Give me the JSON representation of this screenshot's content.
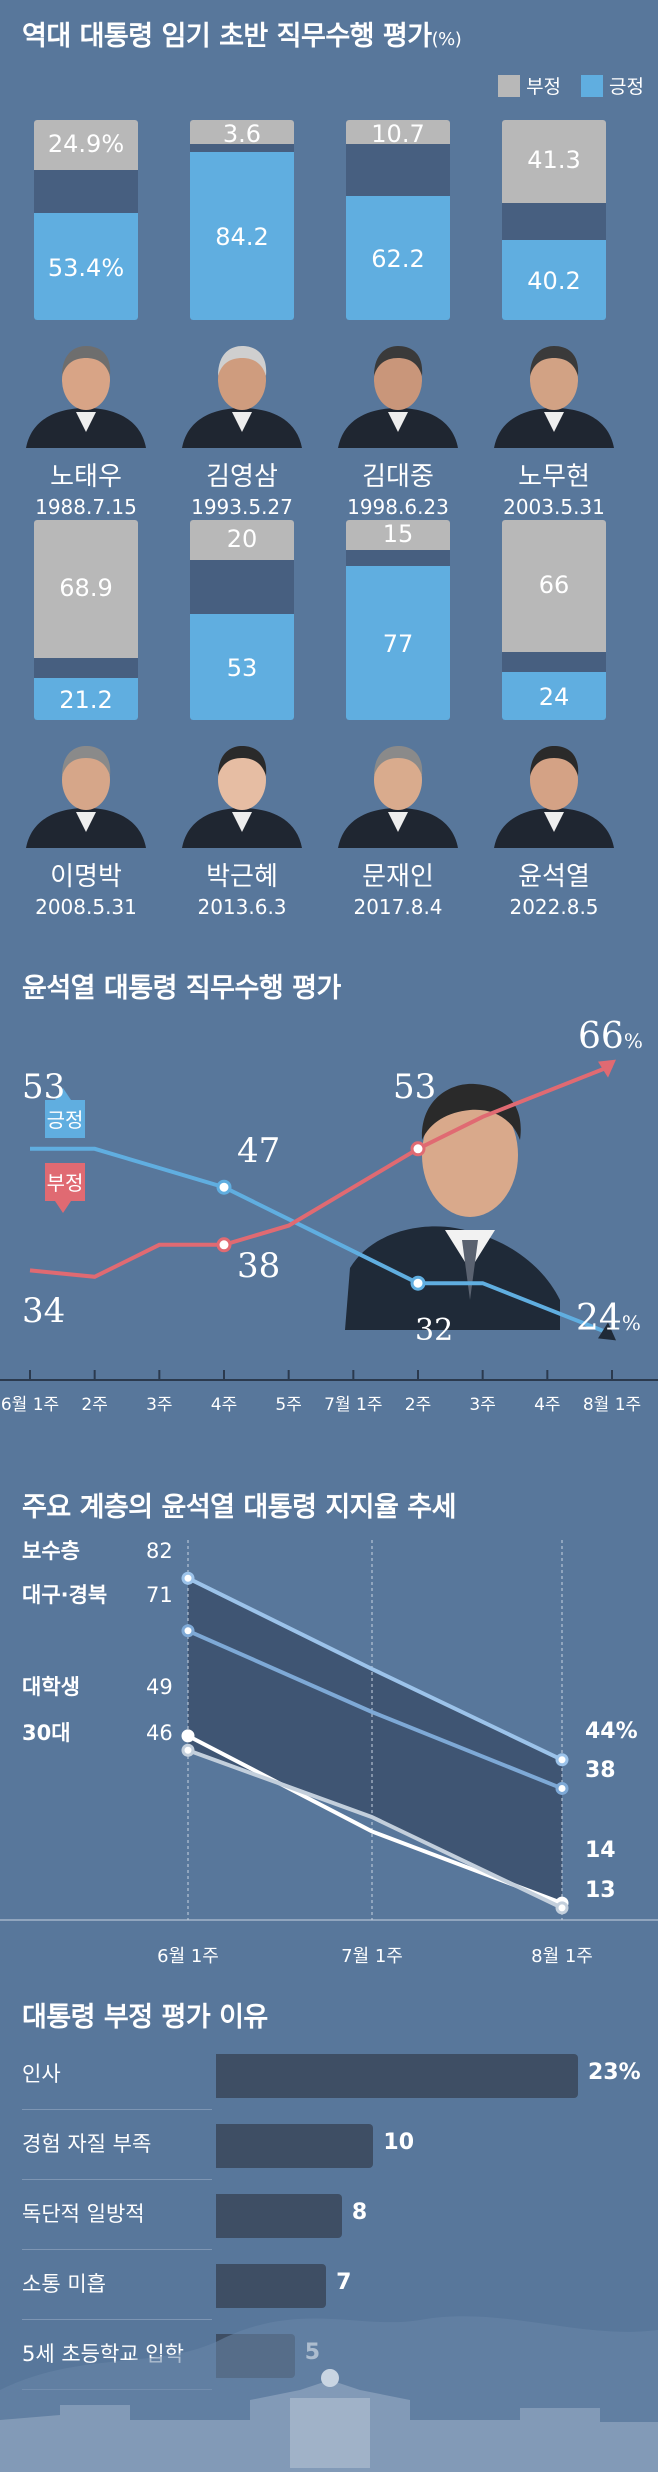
{
  "section1": {
    "title": "역대 대통령 임기 초반 직무수행 평가",
    "unit": "(%)",
    "legend": {
      "negative": "부정",
      "positive": "긍정"
    },
    "colors": {
      "negative": "#b8b8b8",
      "positive": "#60aee0",
      "background": "#58779b"
    },
    "presidents": [
      {
        "name": "노태우",
        "date": "1988.7.15",
        "negative": "24.9%",
        "positive": "53.4%"
      },
      {
        "name": "김영삼",
        "date": "1993.5.27",
        "negative": "3.6",
        "positive": "84.2"
      },
      {
        "name": "김대중",
        "date": "1998.6.23",
        "negative": "10.7",
        "positive": "62.2"
      },
      {
        "name": "노무현",
        "date": "2003.5.31",
        "negative": "41.3",
        "positive": "40.2"
      },
      {
        "name": "이명박",
        "date": "2008.5.31",
        "negative": "68.9",
        "positive": "21.2"
      },
      {
        "name": "박근혜",
        "date": "2013.6.3",
        "negative": "20",
        "positive": "53"
      },
      {
        "name": "문재인",
        "date": "2017.8.4",
        "negative": "15",
        "positive": "77"
      },
      {
        "name": "윤석열",
        "date": "2022.8.5",
        "negative": "66",
        "positive": "24"
      }
    ]
  },
  "section2": {
    "title": "윤석열 대통령 직무수행 평가",
    "tag_positive": "긍정",
    "tag_negative": "부정",
    "labels": {
      "pos_start": "53",
      "pos_mid": "47",
      "pos_low": "32",
      "pos_end": "24",
      "pos_end_unit": "%",
      "neg_start": "34",
      "neg_mid": "38",
      "neg_peak": "53",
      "neg_end": "66",
      "neg_end_unit": "%"
    }
  },
  "section3": {
    "title": "주요 계층의 윤석열 대통령 지지율 추세",
    "groups": {
      "conservative": {
        "label": "보수층",
        "start": "82",
        "end": "44%"
      },
      "daegu": {
        "label": "대구·경북",
        "start": "71",
        "end": "38"
      },
      "college": {
        "label": "대학생",
        "start": "49",
        "end": "14"
      },
      "thirties": {
        "label": "30대",
        "start": "46",
        "end": "13"
      }
    },
    "xticks": [
      "6월 1주",
      "7월 1주",
      "8월 1주"
    ]
  },
  "section4": {
    "title": "대통령 부정 평가 이유",
    "reasons": [
      {
        "label": "인사",
        "value": "23%"
      },
      {
        "label": "경험 자질 부족",
        "value": "10"
      },
      {
        "label": "독단적 일방적",
        "value": "8"
      },
      {
        "label": "소통 미흡",
        "value": "7"
      },
      {
        "label": "5세 초등학교 입학",
        "value": "5"
      }
    ]
  },
  "chart_data": [
    {
      "type": "bar",
      "title": "역대 대통령 임기 초반 직무수행 평가(%)",
      "categories": [
        "노태우 1988.7.15",
        "김영삼 1993.5.27",
        "김대중 1998.6.23",
        "노무현 2003.5.31",
        "이명박 2008.5.31",
        "박근혜 2013.6.3",
        "문재인 2017.8.4",
        "윤석열 2022.8.5"
      ],
      "series": [
        {
          "name": "부정",
          "values": [
            24.9,
            3.6,
            10.7,
            41.3,
            68.9,
            20,
            15,
            66
          ]
        },
        {
          "name": "긍정",
          "values": [
            53.4,
            84.2,
            62.2,
            40.2,
            21.2,
            53,
            77,
            24
          ]
        }
      ],
      "legend": "top-right",
      "stacked": true,
      "ylim": [
        0,
        100
      ]
    },
    {
      "type": "line",
      "title": "윤석열 대통령 직무수행 평가",
      "x": [
        "6월 1주",
        "2주",
        "3주",
        "4주",
        "5주",
        "7월 1주",
        "2주",
        "3주",
        "4주",
        "8월 1주"
      ],
      "series": [
        {
          "name": "긍정",
          "values": [
            53,
            53,
            50,
            47,
            42,
            37,
            32,
            32,
            28,
            24
          ]
        },
        {
          "name": "부정",
          "values": [
            34,
            33,
            38,
            38,
            41,
            47,
            53,
            58,
            62,
            66
          ]
        }
      ],
      "ylim": [
        20,
        70
      ]
    },
    {
      "type": "line",
      "title": "주요 계층의 윤석열 대통령 지지율 추세",
      "x": [
        "6월 1주",
        "7월 1주",
        "8월 1주"
      ],
      "series": [
        {
          "name": "보수층",
          "values": [
            82,
            63,
            44
          ]
        },
        {
          "name": "대구·경북",
          "values": [
            71,
            54,
            38
          ]
        },
        {
          "name": "대학생",
          "values": [
            49,
            29,
            14
          ]
        },
        {
          "name": "30대",
          "values": [
            46,
            32,
            13
          ]
        }
      ],
      "ylim": [
        0,
        90
      ]
    },
    {
      "type": "bar",
      "title": "대통령 부정 평가 이유",
      "categories": [
        "인사",
        "경험 자질 부족",
        "독단적 일방적",
        "소통 미흡",
        "5세 초등학교 입학"
      ],
      "values": [
        23,
        10,
        8,
        7,
        5
      ],
      "orientation": "horizontal"
    }
  ]
}
